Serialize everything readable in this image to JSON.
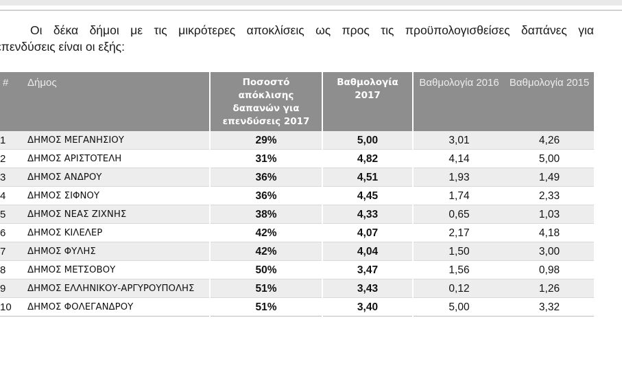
{
  "intro": {
    "line1": "Οι δέκα δήμοι με τις μικρότερες αποκλίσεις ως προς τις προϋπολογισθείσες δαπάνες για",
    "line2": "επενδύσεις είναι οι εξής:"
  },
  "table": {
    "headers": {
      "index": "#",
      "municipality": "Δήμος",
      "deviation": "Ποσοστό απόκλισης δαπανών για επενδύσεις 2017",
      "score2017": "Βαθμολογία 2017",
      "score2016": "Βαθμολογία 2016",
      "score2015": "Βαθμολογία 2015"
    },
    "rows": [
      {
        "n": "1",
        "name": "ΔΗΜΟΣ ΜΕΓΑΝΗΣΙΟΥ",
        "pct": "29%",
        "s2017": "5,00",
        "s2016": "3,01",
        "s2015": "4,26"
      },
      {
        "n": "2",
        "name": "ΔΗΜΟΣ ΑΡΙΣΤΟΤΕΛΗ",
        "pct": "31%",
        "s2017": "4,82",
        "s2016": "4,14",
        "s2015": "5,00"
      },
      {
        "n": "3",
        "name": "ΔΗΜΟΣ ΑΝΔΡΟΥ",
        "pct": "36%",
        "s2017": "4,51",
        "s2016": "1,93",
        "s2015": "1,49"
      },
      {
        "n": "4",
        "name": "ΔΗΜΟΣ ΣΙΦΝΟΥ",
        "pct": "36%",
        "s2017": "4,45",
        "s2016": "1,74",
        "s2015": "2,33"
      },
      {
        "n": "5",
        "name": "ΔΗΜΟΣ ΝΕΑΣ ΖΙΧΝΗΣ",
        "pct": "38%",
        "s2017": "4,33",
        "s2016": "0,65",
        "s2015": "1,03"
      },
      {
        "n": "6",
        "name": "ΔΗΜΟΣ ΚΙΛΕΛΕΡ",
        "pct": "42%",
        "s2017": "4,07",
        "s2016": "2,17",
        "s2015": "4,18"
      },
      {
        "n": "7",
        "name": "ΔΗΜΟΣ ΦΥΛΗΣ",
        "pct": "42%",
        "s2017": "4,04",
        "s2016": "1,50",
        "s2015": "3,00"
      },
      {
        "n": "8",
        "name": "ΔΗΜΟΣ ΜΕΤΣΟΒΟΥ",
        "pct": "50%",
        "s2017": "3,47",
        "s2016": "1,56",
        "s2015": "0,98"
      },
      {
        "n": "9",
        "name": "ΔΗΜΟΣ ΕΛΛΗΝΙΚΟΥ-ΑΡΓΥΡΟΥΠΟΛΗΣ",
        "pct": "51%",
        "s2017": "3,43",
        "s2016": "0,12",
        "s2015": "1,26"
      },
      {
        "n": "10",
        "name": "ΔΗΜΟΣ ΦΟΛΕΓΑΝΔΡΟΥ",
        "pct": "51%",
        "s2017": "3,40",
        "s2016": "5,00",
        "s2015": "3,32"
      }
    ]
  }
}
